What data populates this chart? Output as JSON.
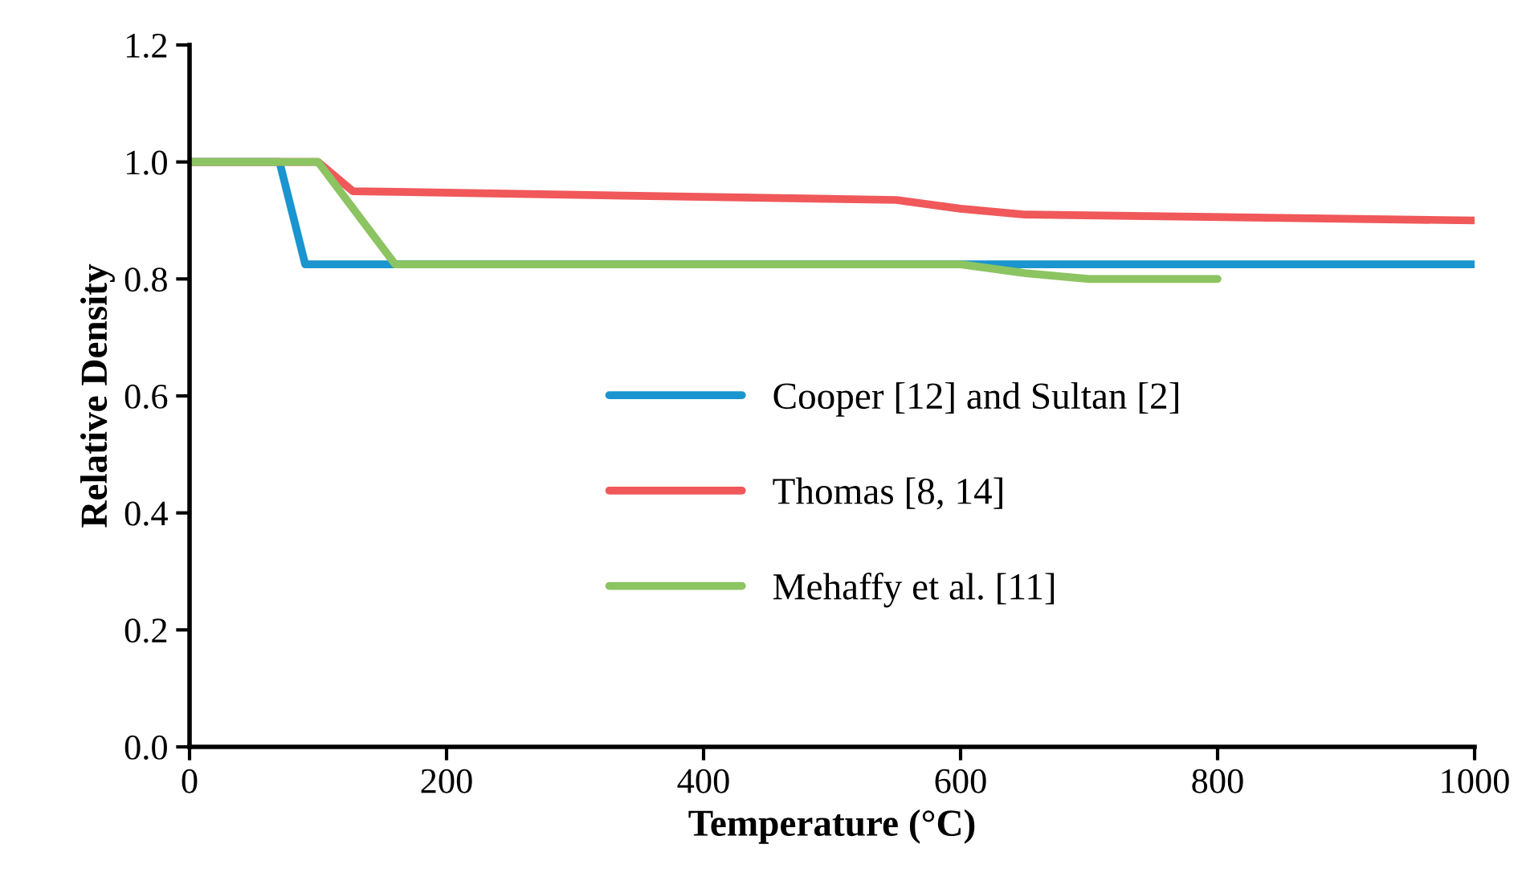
{
  "chart_data": {
    "type": "line",
    "xlabel": "Temperature (°C)",
    "ylabel": "Relative Density",
    "xlim": [
      0,
      1000
    ],
    "xticks": [
      0,
      200,
      400,
      600,
      800,
      1000
    ],
    "ylim": [
      0,
      1.2
    ],
    "yticks": [
      {
        "value": 0,
        "label": "0.0"
      },
      0.2,
      0.4,
      0.6,
      0.8,
      {
        "value": 1,
        "label": "1.0"
      },
      1.2
    ],
    "grid": false,
    "legend": "center",
    "marker": "none",
    "line_style": "solid",
    "series": [
      {
        "name": "Cooper [12] and Sultan [2]",
        "color": "#1a95cf",
        "x": [
          0,
          70,
          90,
          1000
        ],
        "values": [
          1.0,
          1.0,
          0.825,
          0.825
        ]
      },
      {
        "name": "Thomas [8, 14]",
        "color": "#f0585a",
        "x": [
          0,
          100,
          127,
          550,
          600,
          650,
          1000
        ],
        "values": [
          1.0,
          1.0,
          0.95,
          0.935,
          0.92,
          0.91,
          0.9
        ]
      },
      {
        "name": "Mehaffy et al. [11]",
        "color": "#8cc462",
        "x": [
          0,
          100,
          160,
          600,
          650,
          700,
          800
        ],
        "values": [
          1.0,
          1.0,
          0.825,
          0.825,
          0.81,
          0.8,
          0.8
        ]
      }
    ]
  }
}
